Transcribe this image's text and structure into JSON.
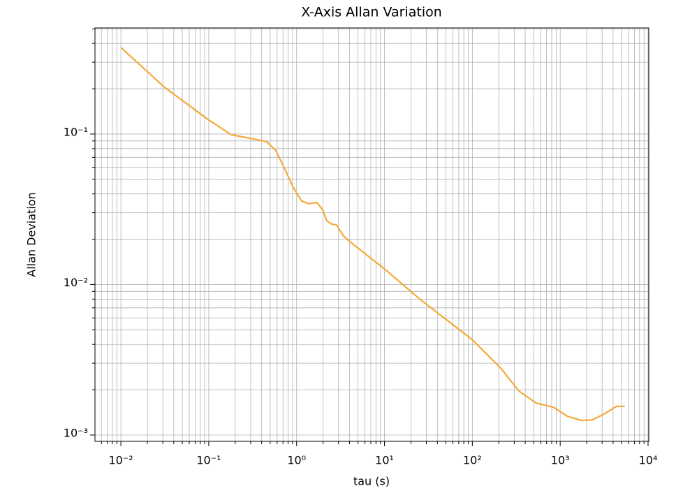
{
  "chart_data": {
    "type": "line",
    "title": "X-Axis Allan Variation",
    "xlabel": "tau (s)",
    "ylabel": "Allan Deviation",
    "xscale": "log",
    "yscale": "log",
    "grid": true,
    "xlim": [
      0.00507,
      10190
    ],
    "ylim": [
      0.000908,
      0.507
    ],
    "xticks": [
      {
        "value": 0.01,
        "label": "10⁻²"
      },
      {
        "value": 0.1,
        "label": "10⁻¹"
      },
      {
        "value": 1,
        "label": "10⁰"
      },
      {
        "value": 10,
        "label": "10¹"
      },
      {
        "value": 100,
        "label": "10²"
      },
      {
        "value": 1000,
        "label": "10³"
      },
      {
        "value": 10000,
        "label": "10⁴"
      }
    ],
    "yticks": [
      {
        "value": 0.001,
        "label": "10⁻³"
      },
      {
        "value": 0.01,
        "label": "10⁻²"
      },
      {
        "value": 0.1,
        "label": "10⁻¹"
      }
    ],
    "xminorticks": [
      0.006,
      0.007,
      0.008,
      0.009,
      0.02,
      0.03,
      0.04,
      0.05,
      0.06,
      0.07,
      0.08,
      0.09,
      0.2,
      0.3,
      0.4,
      0.5,
      0.6,
      0.7,
      0.8,
      0.9,
      2,
      3,
      4,
      5,
      6,
      7,
      8,
      9,
      20,
      30,
      40,
      50,
      60,
      70,
      80,
      90,
      200,
      300,
      400,
      500,
      600,
      700,
      800,
      900,
      2000,
      3000,
      4000,
      5000,
      6000,
      7000,
      8000,
      9000
    ],
    "yminorticks": [
      0.002,
      0.003,
      0.004,
      0.005,
      0.006,
      0.007,
      0.008,
      0.009,
      0.02,
      0.03,
      0.04,
      0.05,
      0.06,
      0.07,
      0.08,
      0.09,
      0.2,
      0.3,
      0.4,
      0.5
    ],
    "series": [
      {
        "color": "#f4a93a",
        "x": [
          0.01,
          0.0312,
          0.1,
          0.18,
          0.315,
          0.454,
          0.577,
          0.72,
          0.912,
          1.14,
          1.37,
          1.7,
          1.97,
          2.2,
          2.46,
          2.84,
          3.42,
          4.11,
          10,
          25.9,
          100,
          212,
          336,
          531,
          839,
          1213,
          1750,
          2305,
          3035,
          4380,
          5455
        ],
        "values": [
          0.376,
          0.205,
          0.124,
          0.099,
          0.093,
          0.089,
          0.078,
          0.06,
          0.0444,
          0.0359,
          0.0344,
          0.0351,
          0.0315,
          0.0266,
          0.0253,
          0.0249,
          0.021,
          0.0191,
          0.0127,
          0.0079,
          0.0043,
          0.00277,
          0.00197,
          0.00163,
          0.00153,
          0.00133,
          0.00125,
          0.00126,
          0.00136,
          0.00155,
          0.00155
        ]
      }
    ]
  }
}
